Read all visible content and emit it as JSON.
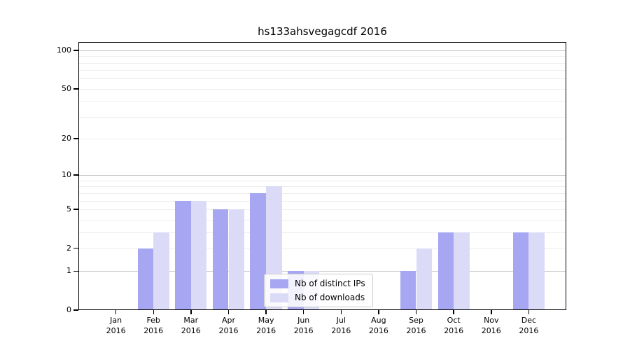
{
  "chart_data": {
    "type": "bar",
    "title": "hs133ahsvegagcdf 2016",
    "categories": [
      "Jan",
      "Feb",
      "Mar",
      "Apr",
      "May",
      "Jun",
      "Jul",
      "Aug",
      "Sep",
      "Oct",
      "Nov",
      "Dec"
    ],
    "category_year": "2016",
    "series": [
      {
        "name": "Nb of distinct IPs",
        "color": "#a6a6f2",
        "values": [
          0,
          2,
          6,
          5,
          7,
          1,
          0,
          0,
          1,
          3,
          0,
          3
        ]
      },
      {
        "name": "Nb of downloads",
        "color": "#dbdbf8",
        "values": [
          0,
          3,
          6,
          5,
          8,
          1,
          0,
          0,
          2,
          3,
          0,
          3
        ]
      }
    ],
    "y_axis": {
      "scale": "symlog-log1p",
      "tick_labels": [
        0,
        1,
        2,
        5,
        10,
        20,
        50,
        100
      ],
      "major_gridlines": [
        1,
        10,
        100
      ],
      "minor_gridlines": [
        2,
        3,
        4,
        5,
        6,
        7,
        8,
        9,
        20,
        30,
        40,
        50,
        60,
        70,
        80,
        90
      ],
      "max": 116
    },
    "x_axis": {
      "tick_label_lines": 2
    },
    "legend_position": "lower-center",
    "grid": true
  },
  "colors": {
    "bar_distinct_ips": "#a6a6f2",
    "bar_downloads": "#dbdbf8",
    "major_grid": "#c4c4c4",
    "minor_grid": "#ededed",
    "axis": "#000000",
    "legend_border": "#cccccc"
  }
}
